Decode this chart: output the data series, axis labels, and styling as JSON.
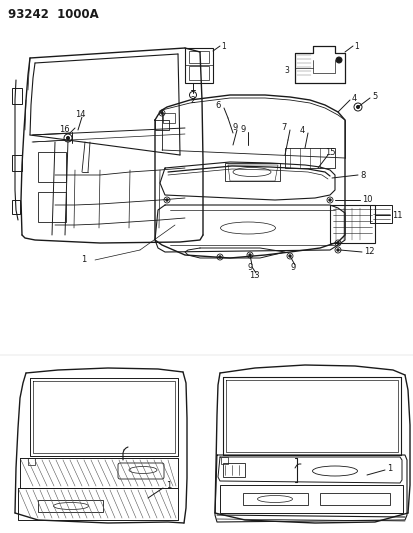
{
  "title": "93242  1000A",
  "bg_color": "#ffffff",
  "lc": "#1a1a1a",
  "lc_gray": "#888888",
  "fs_title": 8.5,
  "fs_label": 6.0,
  "fs_label_sm": 5.5
}
